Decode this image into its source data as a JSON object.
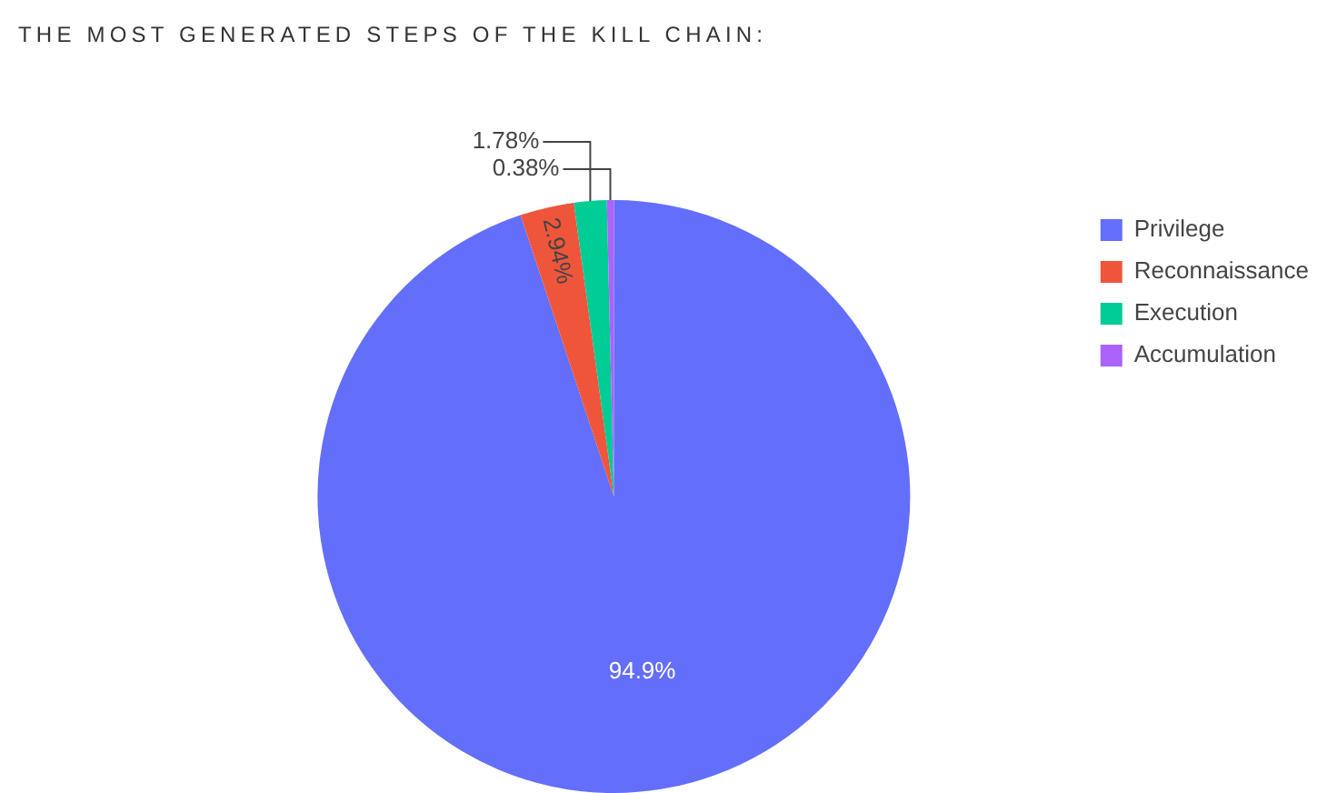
{
  "chart_data": {
    "type": "pie",
    "title": "THE MOST GENERATED STEPS OF THE KILL CHAIN:",
    "categories": [
      "Privilege",
      "Reconnaissance",
      "Execution",
      "Accumulation"
    ],
    "values": [
      94.9,
      2.94,
      1.78,
      0.38
    ],
    "colors": [
      "#636efa",
      "#ef553b",
      "#00cc96",
      "#ab63fa"
    ],
    "value_labels": [
      "94.9%",
      "2.94%",
      "1.78%",
      "0.38%"
    ],
    "legend": "top right"
  }
}
